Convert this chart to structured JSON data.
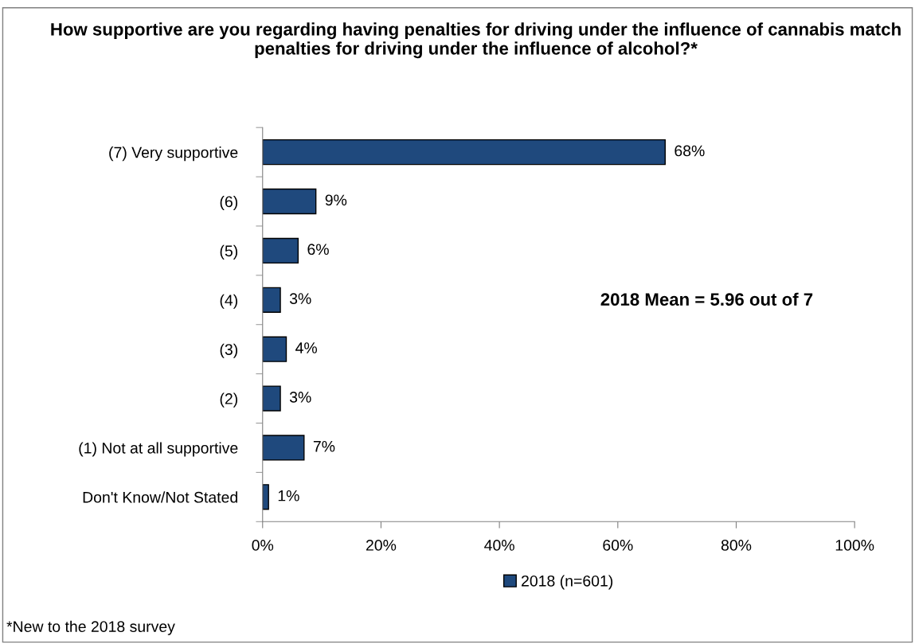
{
  "chart_data": {
    "type": "bar",
    "orientation": "horizontal",
    "title": "How supportive are you regarding having penalties for driving under the influence of cannabis match penalties for driving under the influence of alcohol?*",
    "categories": [
      "(7) Very supportive",
      "(6)",
      "(5)",
      "(4)",
      "(3)",
      "(2)",
      "(1) Not at all supportive",
      "Don't Know/Not Stated"
    ],
    "series": [
      {
        "name": "2018 (n=601)",
        "color": "#1f497d",
        "values": [
          68,
          9,
          6,
          3,
          4,
          3,
          7,
          1
        ],
        "value_labels": [
          "68%",
          "9%",
          "6%",
          "3%",
          "4%",
          "3%",
          "7%",
          "1%"
        ]
      }
    ],
    "xlim": [
      0,
      100
    ],
    "xticks": [
      {
        "value": 0,
        "label": "0%"
      },
      {
        "value": 20,
        "label": "20%"
      },
      {
        "value": 40,
        "label": "40%"
      },
      {
        "value": 60,
        "label": "60%"
      },
      {
        "value": 80,
        "label": "80%"
      },
      {
        "value": 100,
        "label": "100%"
      }
    ],
    "grid": false,
    "legend": "bottom",
    "annotations": [
      "2018 Mean = 5.96 out of 7",
      "*New to the 2018 survey"
    ]
  }
}
